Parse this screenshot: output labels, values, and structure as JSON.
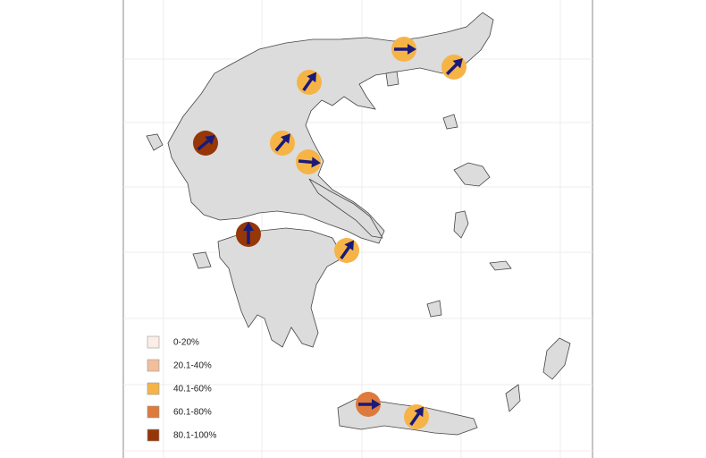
{
  "legend": {
    "items": [
      {
        "label": "0-20%",
        "color": "#fbeee6"
      },
      {
        "label": "20.1-40%",
        "color": "#f2be9c"
      },
      {
        "label": "40.1-60%",
        "color": "#f6b447"
      },
      {
        "label": "60.1-80%",
        "color": "#dd7a3c"
      },
      {
        "label": "80.1-100%",
        "color": "#963708"
      }
    ]
  }
}
